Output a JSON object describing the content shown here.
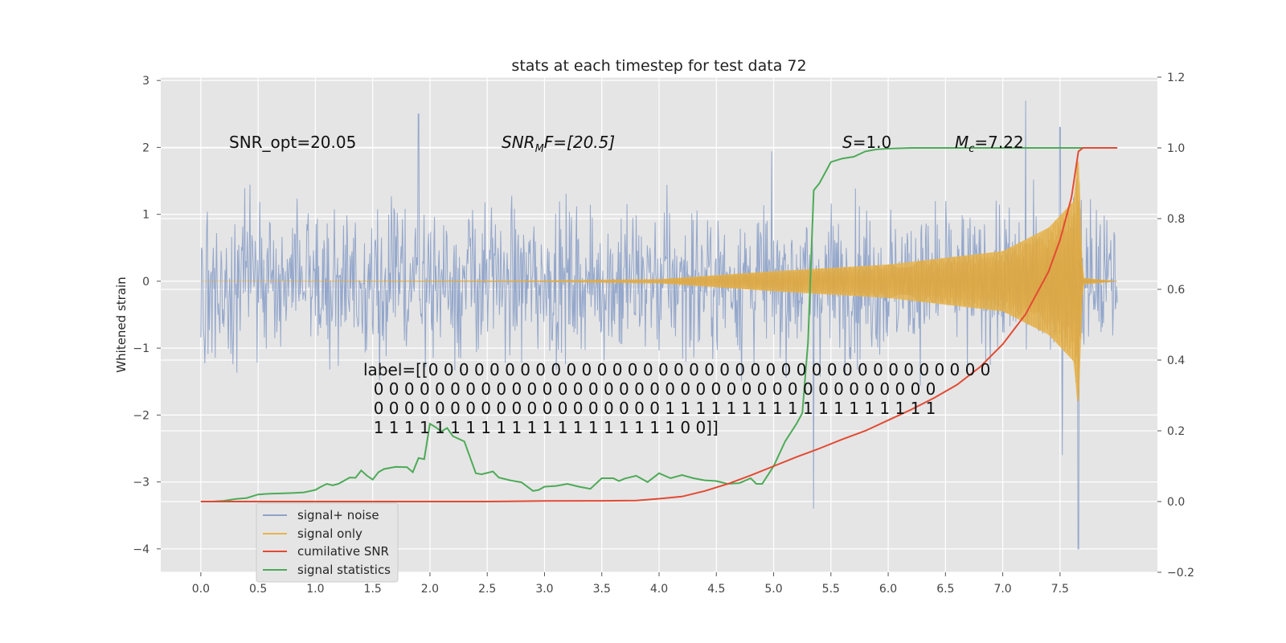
{
  "chart_data": {
    "type": "line",
    "title": "stats at each timestep for test data 72",
    "ylabel_left": "Whitened strain",
    "xlim": [
      -0.35,
      8.35
    ],
    "ylim_left": [
      -4.35,
      3.05
    ],
    "ylim_right": [
      -0.2,
      1.2
    ],
    "x_ticks": [
      0.0,
      0.5,
      1.0,
      1.5,
      2.0,
      2.5,
      3.0,
      3.5,
      4.0,
      4.5,
      5.0,
      5.5,
      6.0,
      6.5,
      7.0,
      7.5
    ],
    "x_tick_labels": [
      "0.0",
      "0.5",
      "1.0",
      "1.5",
      "2.0",
      "2.5",
      "3.0",
      "3.5",
      "4.0",
      "4.5",
      "5.0",
      "5.5",
      "6.0",
      "6.5",
      "7.0",
      "7.5"
    ],
    "y_ticks_left": [
      -4,
      -3,
      -2,
      -1,
      0,
      1,
      2,
      3
    ],
    "y_tick_labels_left": [
      "−4",
      "−3",
      "−2",
      "−1",
      "0",
      "1",
      "2",
      "3"
    ],
    "y_ticks_right": [
      -0.2,
      0.0,
      0.2,
      0.4,
      0.6,
      0.8,
      1.0,
      1.2
    ],
    "y_tick_labels_right": [
      "−0.2",
      "0.0",
      "0.2",
      "0.4",
      "0.6",
      "0.8",
      "1.0",
      "1.2"
    ],
    "grid": true,
    "legend_position": "lower-left",
    "colors": {
      "noise": "#8fa3c9",
      "signal": "#e8b44c",
      "snr": "#e24a33",
      "stats": "#4daa57",
      "background": "#e5e5e5"
    },
    "series": [
      {
        "name": "signal+ noise",
        "axis": "left",
        "style": "noise",
        "x_range": [
          0.0,
          8.0
        ],
        "approx_envelope": [
          -2.3,
          2.5
        ],
        "peaks": [
          [
            1.9,
            2.5
          ],
          [
            7.2,
            2.7
          ],
          [
            7.5,
            2.3
          ],
          [
            5.35,
            -3.4
          ],
          [
            7.66,
            -4.0
          ],
          [
            7.52,
            -2.6
          ]
        ]
      },
      {
        "name": "signal only",
        "axis": "left",
        "style": "chirp",
        "x_range": [
          0.0,
          8.0
        ],
        "amplitude_envelope": [
          [
            0.0,
            0.0
          ],
          [
            3.0,
            0.01
          ],
          [
            4.0,
            0.03
          ],
          [
            5.0,
            0.15
          ],
          [
            6.0,
            0.25
          ],
          [
            7.0,
            0.45
          ],
          [
            7.4,
            0.8
          ],
          [
            7.62,
            1.2
          ],
          [
            7.66,
            2.0
          ],
          [
            7.7,
            0.05
          ],
          [
            8.0,
            0.0
          ]
        ]
      },
      {
        "name": "cumilative SNR",
        "axis": "right",
        "x": [
          0.0,
          0.5,
          1.0,
          1.5,
          2.0,
          2.5,
          3.0,
          3.5,
          3.8,
          4.0,
          4.2,
          4.4,
          4.6,
          4.8,
          5.0,
          5.2,
          5.4,
          5.6,
          5.8,
          6.0,
          6.2,
          6.4,
          6.6,
          6.8,
          7.0,
          7.2,
          7.4,
          7.5,
          7.6,
          7.66,
          7.7,
          8.0
        ],
        "y": [
          0.0,
          0.0,
          0.0,
          0.0,
          0.0,
          0.0,
          0.0015,
          0.002,
          0.003,
          0.008,
          0.014,
          0.03,
          0.05,
          0.074,
          0.1,
          0.126,
          0.15,
          0.176,
          0.2,
          0.23,
          0.26,
          0.293,
          0.33,
          0.38,
          0.445,
          0.53,
          0.65,
          0.74,
          0.86,
          0.99,
          1.0,
          1.0
        ]
      },
      {
        "name": "signal statistics",
        "axis": "right",
        "x": [
          0.0,
          0.1,
          0.2,
          0.3,
          0.4,
          0.5,
          0.6,
          0.7,
          0.8,
          0.9,
          1.0,
          1.05,
          1.1,
          1.15,
          1.2,
          1.3,
          1.35,
          1.4,
          1.45,
          1.5,
          1.55,
          1.6,
          1.7,
          1.8,
          1.85,
          1.9,
          1.95,
          2.0,
          2.05,
          2.1,
          2.15,
          2.2,
          2.3,
          2.4,
          2.45,
          2.55,
          2.6,
          2.7,
          2.8,
          2.9,
          2.95,
          3.0,
          3.1,
          3.2,
          3.3,
          3.4,
          3.5,
          3.6,
          3.65,
          3.7,
          3.8,
          3.9,
          4.0,
          4.1,
          4.2,
          4.3,
          4.4,
          4.5,
          4.6,
          4.7,
          4.8,
          4.85,
          4.9,
          5.0,
          5.1,
          5.2,
          5.25,
          5.3,
          5.35,
          5.4,
          5.5,
          5.6,
          5.7,
          5.8,
          5.9,
          6.0,
          6.2,
          6.5,
          7.0,
          7.5,
          8.0
        ],
        "y": [
          0.0,
          0.0,
          0.002,
          0.007,
          0.01,
          0.02,
          0.022,
          0.023,
          0.024,
          0.026,
          0.033,
          0.042,
          0.05,
          0.046,
          0.05,
          0.068,
          0.067,
          0.088,
          0.073,
          0.062,
          0.083,
          0.092,
          0.098,
          0.097,
          0.083,
          0.123,
          0.12,
          0.22,
          0.21,
          0.198,
          0.208,
          0.185,
          0.17,
          0.08,
          0.077,
          0.085,
          0.068,
          0.06,
          0.054,
          0.03,
          0.033,
          0.042,
          0.044,
          0.05,
          0.042,
          0.036,
          0.066,
          0.066,
          0.058,
          0.065,
          0.073,
          0.055,
          0.08,
          0.066,
          0.075,
          0.066,
          0.06,
          0.058,
          0.05,
          0.052,
          0.066,
          0.05,
          0.05,
          0.1,
          0.17,
          0.22,
          0.25,
          0.45,
          0.88,
          0.9,
          0.96,
          0.97,
          0.975,
          0.99,
          0.996,
          0.998,
          1.0,
          1.0,
          1.0,
          1.0,
          1.0
        ]
      }
    ],
    "annotations": {
      "snr_opt": "SNR_opt=20.05",
      "snr_mf_label": "SNR",
      "snr_mf_sub": "M",
      "snr_mf_rest": "F=[20.5]",
      "s_label": "S",
      "s_rest": "=1.0",
      "mc_label": "M",
      "mc_sub": "c",
      "mc_rest": "=7.22",
      "label_lines": [
        "label=[[0 0 0 0 0 0 0 0 0 0 0 0 0 0 0 0 0 0 0 0 0 0 0 0 0 0 0 0 0 0 0 0 0 0 0 0 0",
        "  0 0 0 0 0 0 0 0 0 0 0 0 0 0 0 0 0 0 0 0 0 0 0 0 0 0 0 0 0 0 0 0 0 0 0 0 0",
        "  0 0 0 0 0 0 0 0 0 0 0 0 0 0 0 0 0 0 0 1 1 1 1 1 1 1 1 1 1 1 1 1 1 1 1 1 1",
        "  1 1 1 1 1 1 1 1 1 1 1 1 1 1 1 1 1 1 1 1 0 0]]"
      ]
    }
  }
}
